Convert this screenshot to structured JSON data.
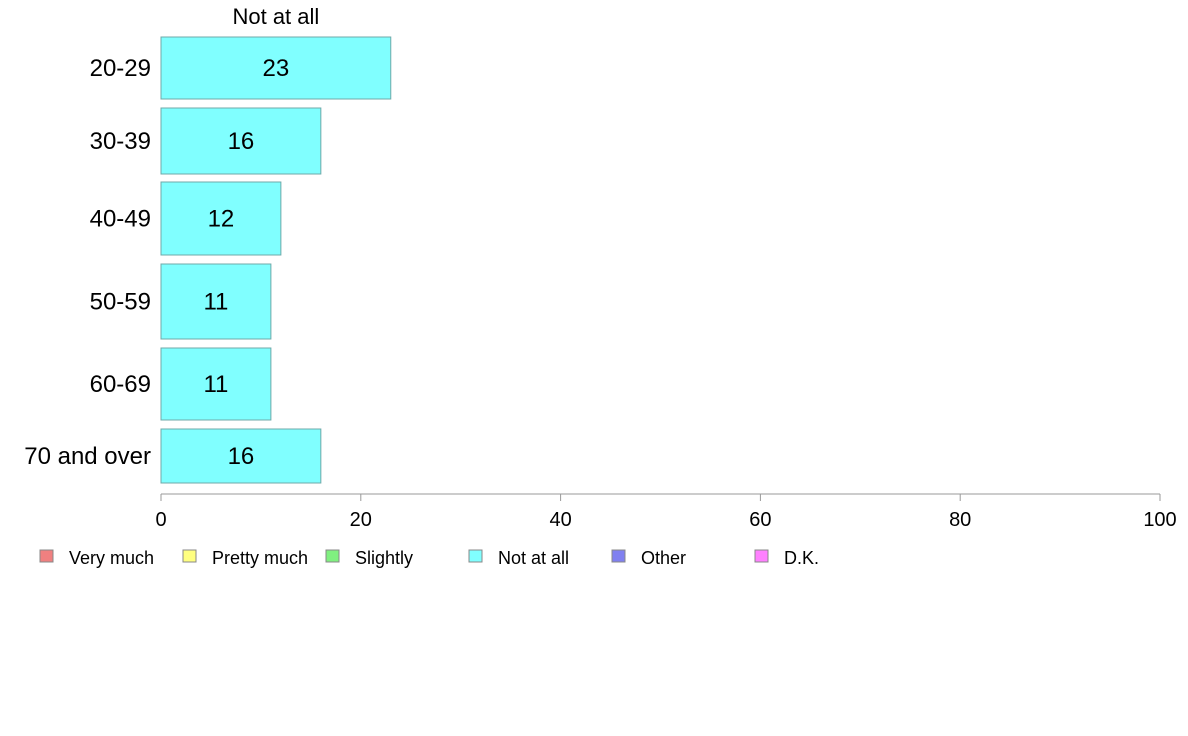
{
  "chart_data": {
    "type": "bar",
    "orientation": "horizontal",
    "stacked": true,
    "categories": [
      "20-29",
      "30-39",
      "40-49",
      "50-59",
      "60-69",
      "70 and over"
    ],
    "series": [
      {
        "name": "Not at all",
        "values": [
          23,
          16,
          12,
          11,
          11,
          16
        ],
        "color": "#80ffff"
      }
    ],
    "series_title": "Not at all",
    "data_labels": [
      "23",
      "16",
      "12",
      "11",
      "11",
      "16"
    ],
    "xlim": [
      0,
      100
    ],
    "xticks": [
      0,
      20,
      40,
      60,
      80,
      100
    ],
    "grid": false,
    "legend": {
      "position": "bottom",
      "entries": [
        {
          "label": "Very much",
          "color": "#f08080"
        },
        {
          "label": "Pretty much",
          "color": "#ffff80"
        },
        {
          "label": "Slightly",
          "color": "#80f080"
        },
        {
          "label": "Not at all",
          "color": "#80ffff"
        },
        {
          "label": "Other",
          "color": "#8080f0"
        },
        {
          "label": "D.K.",
          "color": "#ff80ff"
        }
      ]
    }
  }
}
